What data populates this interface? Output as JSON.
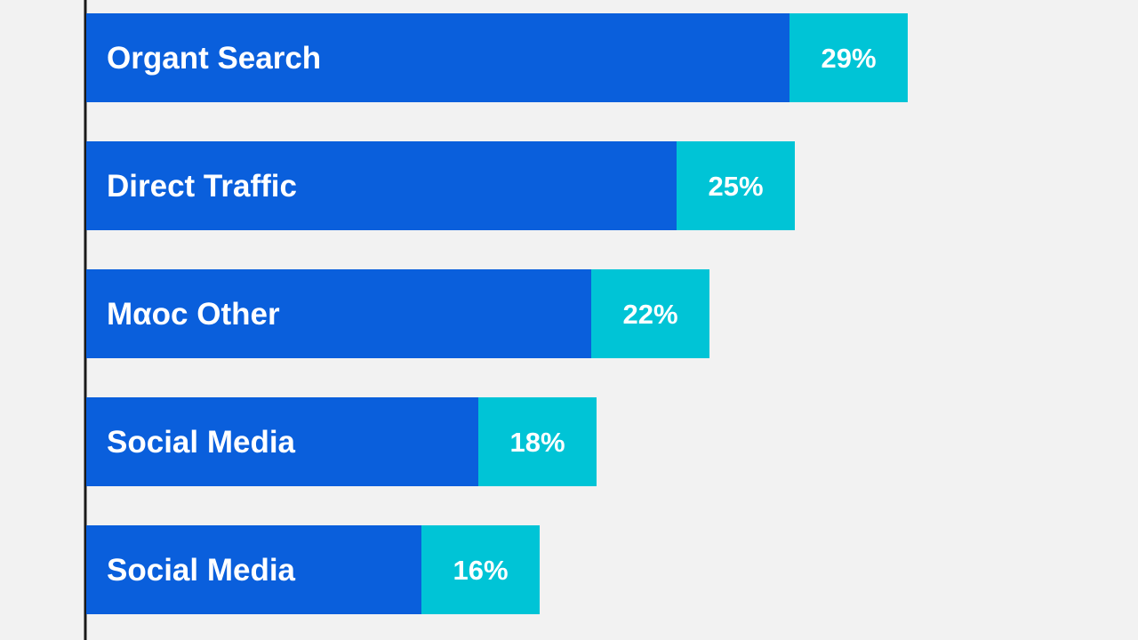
{
  "chart_data": {
    "type": "bar",
    "orientation": "horizontal",
    "categories": [
      "Organt Search",
      "Direct Traffic",
      "Mαoc Other",
      "Social Media",
      "Social Media"
    ],
    "values": [
      29,
      25,
      22,
      18,
      16
    ],
    "value_labels": [
      "29%",
      "25%",
      "22%",
      "18%",
      "16%"
    ],
    "title": "",
    "xlabel": "",
    "ylabel": "",
    "grid": false,
    "legend": "none"
  },
  "colors": {
    "background": "#f2f2f2",
    "bar": "#0a5fdc",
    "value_cap": "#00c4d6",
    "axis": "#1a1a1a",
    "text": "#ffffff"
  }
}
